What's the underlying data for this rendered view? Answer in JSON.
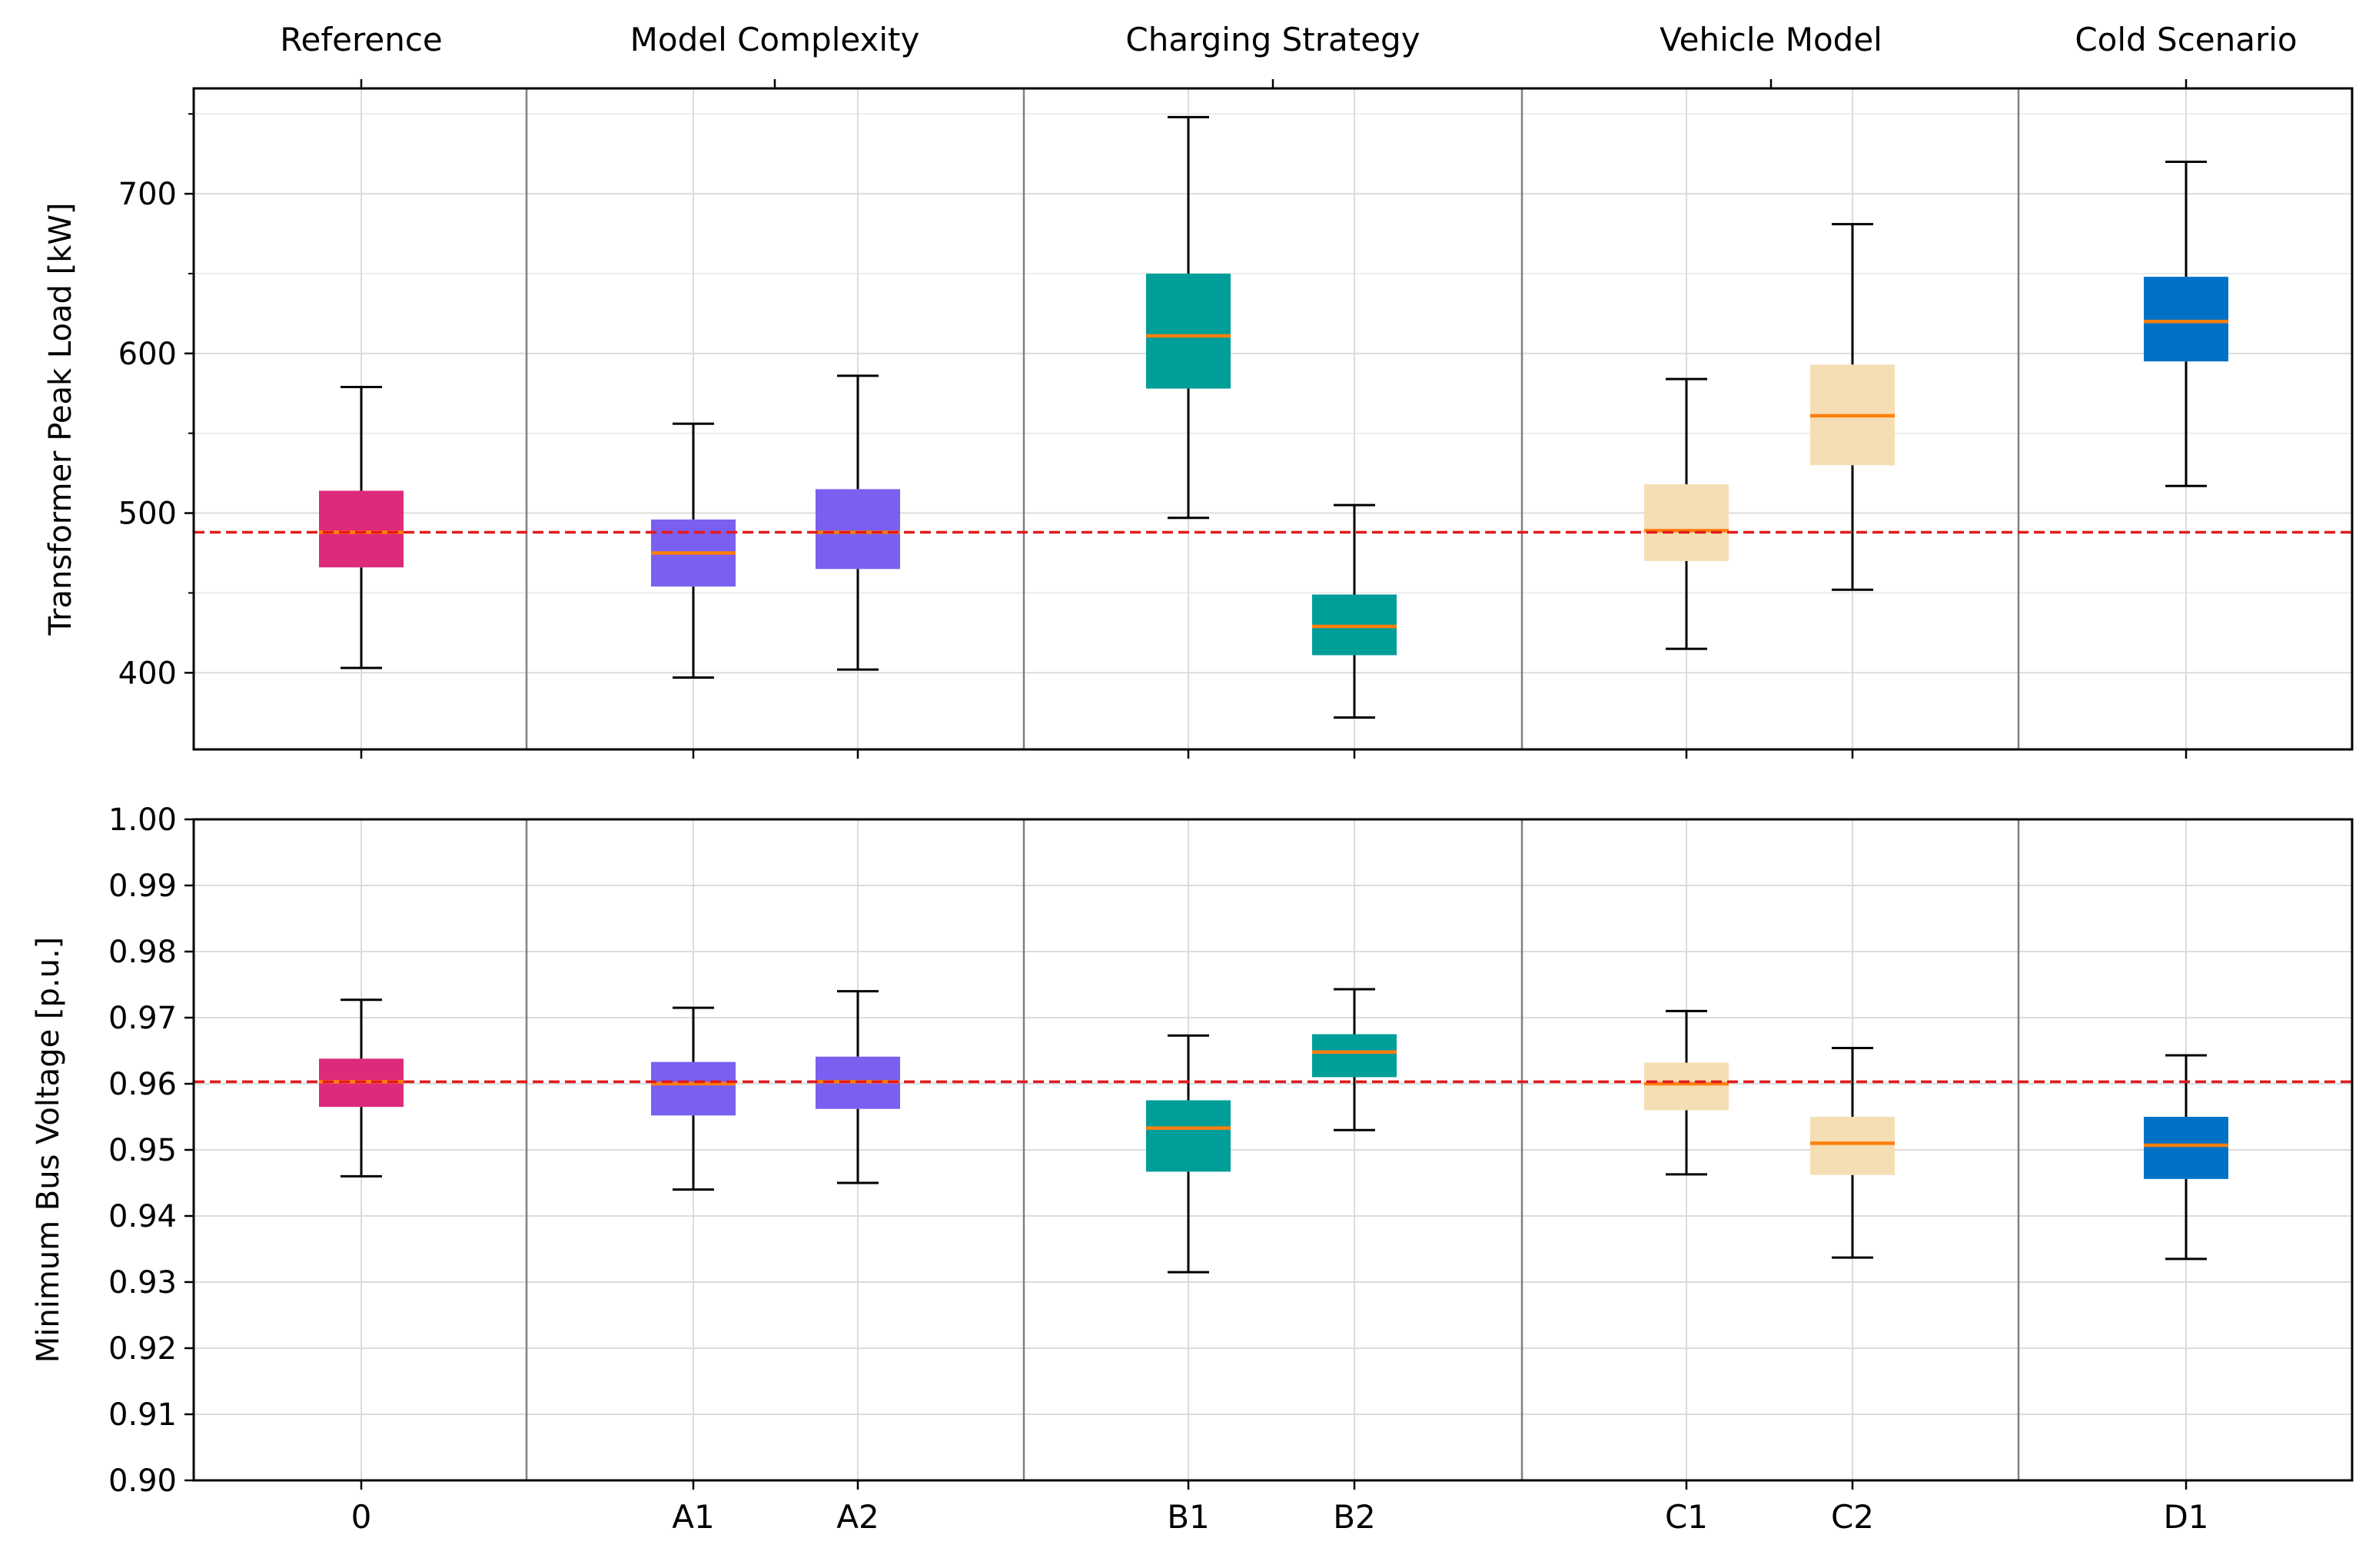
{
  "chart_data": [
    {
      "type": "box",
      "ylabel": "Transformer Peak Load [kW]",
      "ylim": [
        352,
        766
      ],
      "yticks": [
        400,
        500,
        600,
        700
      ],
      "ytick_labels": [
        "400",
        "500",
        "600",
        "700"
      ],
      "minor_ytick_step": 50,
      "grid": true,
      "reference_line": 488,
      "group_labels": [
        "Reference",
        "Model Complexity",
        "Charging Strategy",
        "Vehicle Model",
        "Cold Scenario"
      ],
      "boxes": [
        {
          "label": "0",
          "group": 0,
          "color": "#dd2a7b",
          "whisker_low": 403,
          "q1": 466,
          "median": 488,
          "q3": 514,
          "whisker_high": 579
        },
        {
          "label": "A1",
          "group": 1,
          "color": "#7b5ff0",
          "whisker_low": 397,
          "q1": 454,
          "median": 475,
          "q3": 496,
          "whisker_high": 556
        },
        {
          "label": "A2",
          "group": 1,
          "color": "#7b5ff0",
          "whisker_low": 402,
          "q1": 465,
          "median": 488,
          "q3": 515,
          "whisker_high": 586
        },
        {
          "label": "B1",
          "group": 2,
          "color": "#009e99",
          "whisker_low": 497,
          "q1": 578,
          "median": 611,
          "q3": 650,
          "whisker_high": 748
        },
        {
          "label": "B2",
          "group": 2,
          "color": "#009e99",
          "whisker_low": 372,
          "q1": 411,
          "median": 429,
          "q3": 449,
          "whisker_high": 505
        },
        {
          "label": "C1",
          "group": 3,
          "color": "#f5deb3",
          "whisker_low": 415,
          "q1": 470,
          "median": 489,
          "q3": 518,
          "whisker_high": 584
        },
        {
          "label": "C2",
          "group": 3,
          "color": "#f5deb3",
          "whisker_low": 452,
          "q1": 530,
          "median": 561,
          "q3": 593,
          "whisker_high": 681
        },
        {
          "label": "D1",
          "group": 4,
          "color": "#0072c6",
          "whisker_low": 517,
          "q1": 595,
          "median": 620,
          "q3": 648,
          "whisker_high": 720
        }
      ]
    },
    {
      "type": "box",
      "ylabel": "Minimum Bus Voltage [p.u.]",
      "ylim": [
        0.9,
        1.0
      ],
      "yticks": [
        0.9,
        0.91,
        0.92,
        0.93,
        0.94,
        0.95,
        0.96,
        0.97,
        0.98,
        0.99,
        1.0
      ],
      "ytick_labels": [
        "0.90",
        "0.91",
        "0.92",
        "0.93",
        "0.94",
        "0.95",
        "0.96",
        "0.97",
        "0.98",
        "0.99",
        "1.00"
      ],
      "grid": true,
      "reference_line": 0.9603,
      "boxes": [
        {
          "label": "0",
          "group": 0,
          "color": "#dd2a7b",
          "whisker_low": 0.946,
          "q1": 0.9565,
          "median": 0.9603,
          "q3": 0.9638,
          "whisker_high": 0.9727
        },
        {
          "label": "A1",
          "group": 1,
          "color": "#7b5ff0",
          "whisker_low": 0.944,
          "q1": 0.9552,
          "median": 0.96,
          "q3": 0.9633,
          "whisker_high": 0.9715
        },
        {
          "label": "A2",
          "group": 1,
          "color": "#7b5ff0",
          "whisker_low": 0.945,
          "q1": 0.9562,
          "median": 0.9603,
          "q3": 0.9641,
          "whisker_high": 0.974
        },
        {
          "label": "B1",
          "group": 2,
          "color": "#009e99",
          "whisker_low": 0.9315,
          "q1": 0.9467,
          "median": 0.9533,
          "q3": 0.9575,
          "whisker_high": 0.9673
        },
        {
          "label": "B2",
          "group": 2,
          "color": "#009e99",
          "whisker_low": 0.953,
          "q1": 0.961,
          "median": 0.9648,
          "q3": 0.9675,
          "whisker_high": 0.9743
        },
        {
          "label": "C1",
          "group": 3,
          "color": "#f5deb3",
          "whisker_low": 0.9463,
          "q1": 0.956,
          "median": 0.96,
          "q3": 0.9632,
          "whisker_high": 0.971
        },
        {
          "label": "C2",
          "group": 3,
          "color": "#f5deb3",
          "whisker_low": 0.9337,
          "q1": 0.9462,
          "median": 0.951,
          "q3": 0.955,
          "whisker_high": 0.9654
        },
        {
          "label": "D1",
          "group": 4,
          "color": "#0072c6",
          "whisker_low": 0.9335,
          "q1": 0.9456,
          "median": 0.9507,
          "q3": 0.955,
          "whisker_high": 0.9643
        }
      ]
    }
  ],
  "style": {
    "median_color": "#ff7f0e",
    "reference_line_color": "#e31a1c",
    "whisker_color": "#000000",
    "grid_color": "#dcdcdc",
    "separator_color": "#808080"
  }
}
